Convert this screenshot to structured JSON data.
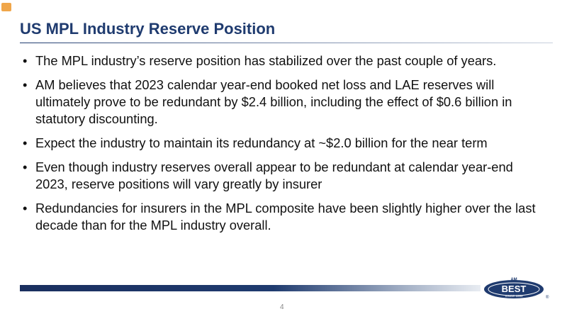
{
  "header": {
    "title": "US MPL Industry Reserve Position"
  },
  "bullets": [
    "The MPL industry’s reserve position has stabilized over the past couple of years.",
    "AM believes that 2023 calendar year-end booked net loss and LAE reserves will ultimately prove to be redundant by $2.4 billion, including the effect of $0.6 billion in statutory discounting.",
    "Expect the industry to maintain its redundancy at ~$2.0 billion for the near term",
    "Even though industry reserves overall appear to be redundant at calendar year-end 2023, reserve positions will vary greatly by insurer",
    "Redundancies for insurers in the MPL composite have been slightly higher over the last decade than for the MPL industry overall."
  ],
  "footer": {
    "page_number": "4",
    "logo": {
      "top": "AM",
      "name": "BEST",
      "since": "SINCE 1899",
      "mark": "®"
    }
  }
}
